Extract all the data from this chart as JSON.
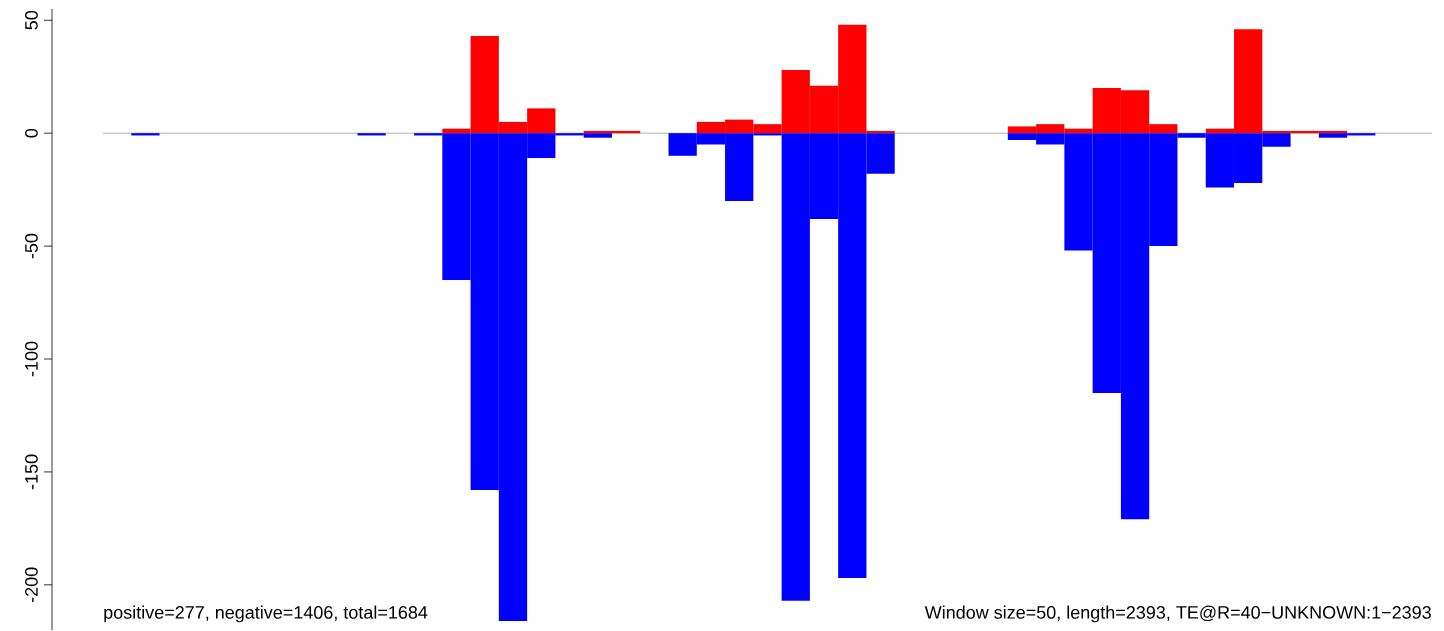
{
  "chart_data": {
    "type": "bar",
    "categories": [
      null,
      null,
      null,
      null,
      null,
      null,
      null,
      null,
      null,
      null,
      null,
      null,
      null,
      null,
      null,
      null,
      null,
      null,
      null,
      null,
      null,
      null,
      null,
      null,
      null,
      null,
      null,
      null,
      null,
      null,
      null,
      null,
      null,
      null,
      null,
      null,
      null,
      null,
      null,
      null,
      null,
      null,
      null,
      null,
      null,
      null,
      null
    ],
    "series": [
      {
        "color": "#ff0000",
        "values": [
          null,
          null,
          null,
          null,
          null,
          null,
          null,
          null,
          null,
          null,
          null,
          null,
          2,
          43,
          5,
          11,
          null,
          1,
          1,
          null,
          null,
          5,
          6,
          4,
          28,
          21,
          48,
          1,
          null,
          null,
          null,
          null,
          3,
          4,
          2,
          20,
          19,
          4,
          null,
          2,
          46,
          1,
          1,
          1,
          null,
          null,
          null
        ]
      },
      {
        "color": "#0000ff",
        "values": [
          null,
          -1,
          null,
          null,
          null,
          null,
          null,
          null,
          null,
          -1,
          null,
          -1,
          -65,
          -158,
          -216,
          -11,
          -1,
          -2,
          null,
          null,
          -10,
          -5,
          -30,
          -1,
          -207,
          -38,
          -197,
          -18,
          null,
          null,
          null,
          null,
          -3,
          -5,
          -52,
          -115,
          -171,
          -50,
          -2,
          -24,
          -22,
          -6,
          null,
          -2,
          -1,
          null,
          null
        ]
      }
    ],
    "ylim": [
      -220,
      55
    ],
    "yticks": [
      -200,
      -150,
      -100,
      -50,
      0,
      50
    ],
    "ref_lines": [
      {
        "axis": "y",
        "value": 0,
        "color": "#808080"
      }
    ],
    "annotations": [
      "positive=277, negative=1406, total=1684",
      "Window size=50, length=2393, TE@R=40−UNKNOWN:1−2393"
    ]
  }
}
